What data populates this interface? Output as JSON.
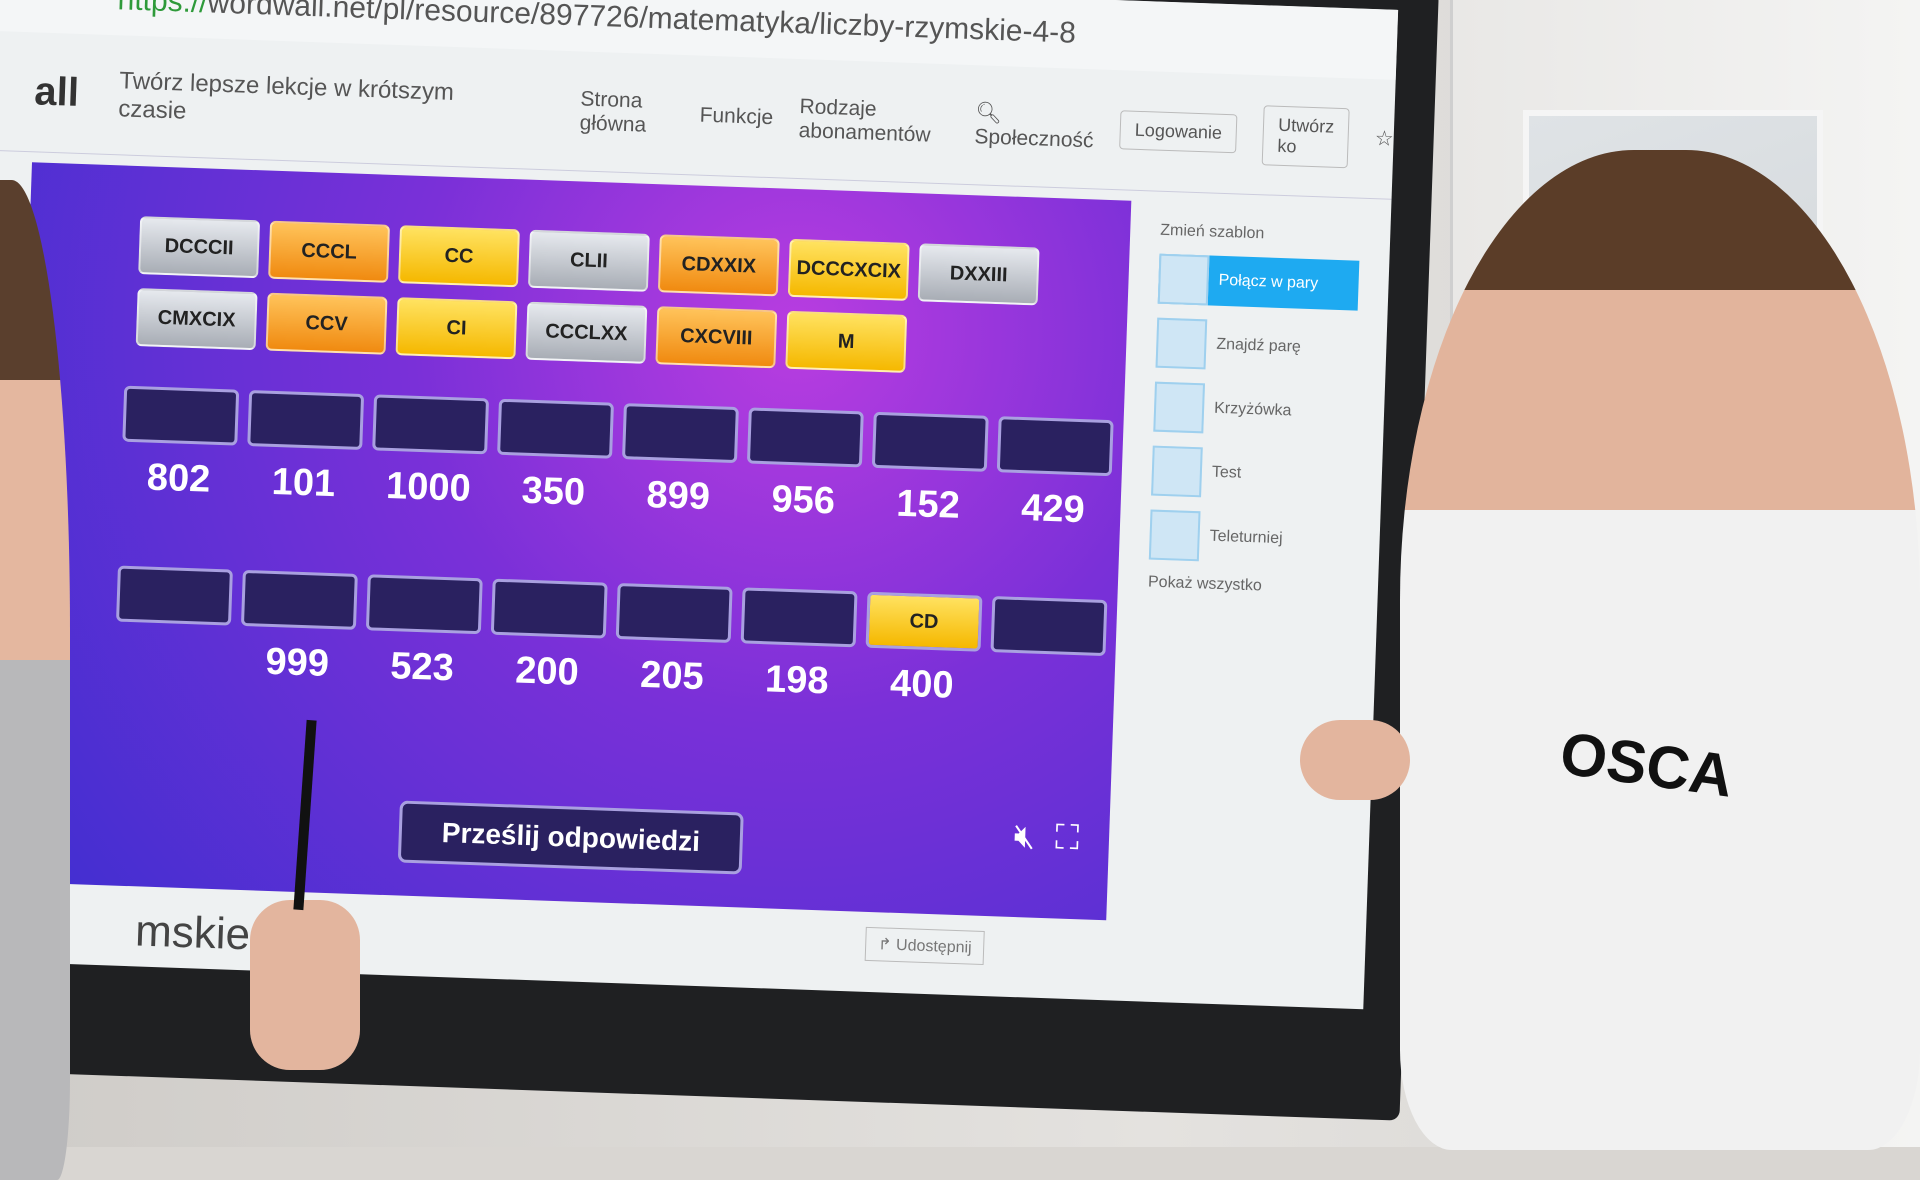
{
  "browser": {
    "url_scheme": "https://",
    "url_rest": "wordwall.net/pl/resource/897726/matematyka/liczby-rzymskie-4-8"
  },
  "site": {
    "logo": "all",
    "tagline": "Twórz lepsze lekcje w krótszym czasie",
    "nav": [
      "Strona główna",
      "Funkcje",
      "Rodzaje abonamentów",
      "Społeczność"
    ],
    "login": "Logowanie",
    "signup": "Utwórz ko"
  },
  "game": {
    "tiles": [
      {
        "label": "DCCCII",
        "color": "silver"
      },
      {
        "label": "CCCL",
        "color": "orange"
      },
      {
        "label": "CC",
        "color": "yellow"
      },
      {
        "label": "CLII",
        "color": "silver"
      },
      {
        "label": "CDXXIX",
        "color": "orange"
      },
      {
        "label": "DCCCXCIX",
        "color": "yellow"
      },
      {
        "label": "DXXIII",
        "color": "silver"
      },
      {
        "label": "CMXCIX",
        "color": "silver"
      },
      {
        "label": "CCV",
        "color": "orange"
      },
      {
        "label": "CI",
        "color": "yellow"
      },
      {
        "label": "CCCLXX",
        "color": "silver"
      },
      {
        "label": "CXCVIII",
        "color": "orange"
      },
      {
        "label": "M",
        "color": "yellow"
      }
    ],
    "row1_numbers": [
      "802",
      "101",
      "1000",
      "350",
      "899",
      "956",
      "152",
      "429"
    ],
    "row2_numbers": [
      "",
      "999",
      "523",
      "200",
      "205",
      "198",
      "400",
      ""
    ],
    "row2_filled": {
      "index": 6,
      "label": "CD"
    },
    "submit_label": "Prześlij odpowiedzi",
    "mute_icon": "speaker-muted-icon",
    "fullscreen_icon": "fullscreen-icon"
  },
  "sidebar": {
    "title": "Zmień szablon",
    "items": [
      "Połącz w pary",
      "Znajdź parę",
      "Krzyżówka",
      "Test",
      "Teleturniej"
    ],
    "show_all": "Pokaż wszystko"
  },
  "share_label": "Udostępnij",
  "page_title": "mskie",
  "hoodie_text": "OSCA"
}
